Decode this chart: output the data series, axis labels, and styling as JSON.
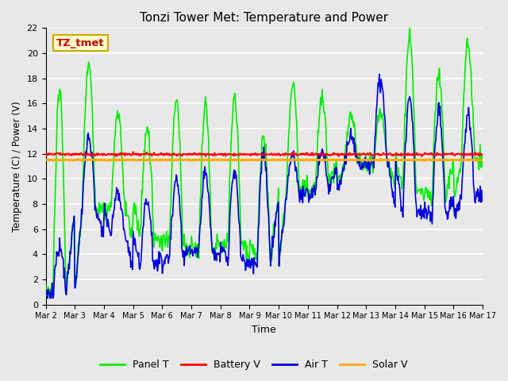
{
  "title": "Tonzi Tower Met: Temperature and Power",
  "xlabel": "Time",
  "ylabel": "Temperature (C) / Power (V)",
  "ylim": [
    0,
    22
  ],
  "yticks": [
    0,
    2,
    4,
    6,
    8,
    10,
    12,
    14,
    16,
    18,
    20,
    22
  ],
  "xtick_labels": [
    "Mar 2",
    "Mar 3",
    "Mar 4",
    "Mar 5",
    "Mar 6",
    "Mar 7",
    "Mar 8",
    "Mar 9",
    "Mar 10",
    "Mar 11",
    "Mar 12",
    "Mar 13",
    "Mar 14",
    "Mar 15",
    "Mar 16",
    "Mar 17"
  ],
  "bg_color": "#e8e8e8",
  "grid_color": "#ffffff",
  "annotation_text": "TZ_tmet",
  "annotation_fg": "#cc0000",
  "annotation_bg": "#ffffcc",
  "annotation_border": "#ccaa00",
  "panel_t_color": "#00ee00",
  "battery_v_color": "#ff0000",
  "air_t_color": "#0000dd",
  "solar_v_color": "#ffaa00",
  "panel_t_label": "Panel T",
  "battery_v_label": "Battery V",
  "air_t_label": "Air T",
  "solar_v_label": "Solar V",
  "battery_v_mean": 11.95,
  "solar_v_mean": 11.5,
  "figsize": [
    6.4,
    4.8
  ],
  "dpi": 100
}
